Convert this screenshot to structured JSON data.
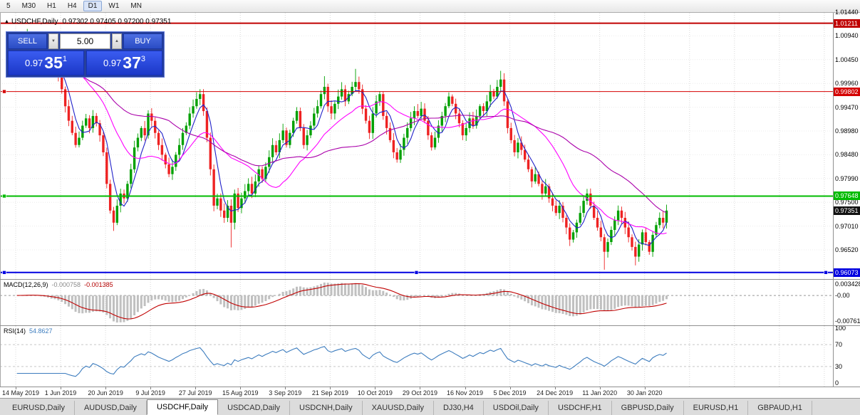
{
  "toolbar": {
    "timeframes": [
      "5",
      "M30",
      "H1",
      "H4",
      "D1",
      "W1",
      "MN"
    ],
    "active": "D1"
  },
  "header": {
    "symbol": "USDCHF,Daily",
    "ohlc": "0.97302 0.97405 0.97200 0.97351"
  },
  "trade_panel": {
    "sell_label": "SELL",
    "buy_label": "BUY",
    "volume": "5.00",
    "sell_price": {
      "big": "0.97",
      "pips": "35",
      "sup": "1"
    },
    "buy_price": {
      "big": "0.97",
      "pips": "37",
      "sup": "3"
    }
  },
  "indicator_panels": {
    "macd": {
      "title": "MACD(12,26,9)",
      "value_main": "-0.000758",
      "value_signal": "-0.001385"
    },
    "rsi": {
      "title": "RSI(14)",
      "value": "54.8627"
    }
  },
  "tabs": {
    "items": [
      "EURUSD,Daily",
      "AUDUSD,Daily",
      "USDCHF,Daily",
      "USDCAD,Daily",
      "USDCNH,Daily",
      "XAUUSD,Daily",
      "DJ30,H4",
      "USDOil,Daily",
      "USDCHF,H1",
      "GBPUSD,Daily",
      "EURUSD,H1",
      "GBPAUD,H1"
    ],
    "active_index": 2
  },
  "chart_data": {
    "type": "candlestick",
    "symbol": "USDCHF",
    "timeframe": "Daily",
    "last_ohlc": {
      "open": 0.97302,
      "high": 0.97405,
      "low": 0.972,
      "close": 0.97351
    },
    "y_axis": {
      "ticks": [
        "1.01440",
        "1.00940",
        "1.00450",
        "0.99960",
        "0.99470",
        "0.98980",
        "0.98480",
        "0.97990",
        "0.97500",
        "0.97010",
        "0.96520"
      ],
      "top_price": 1.0144,
      "tick_step": 0.0049
    },
    "x_axis": {
      "labels": [
        "14 May 2019",
        "1 Jun 2019",
        "20 Jun 2019",
        "9 Jul 2019",
        "27 Jul 2019",
        "15 Aug 2019",
        "3 Sep 2019",
        "21 Sep 2019",
        "10 Oct 2019",
        "29 Oct 2019",
        "16 Nov 2019",
        "5 Dec 2019",
        "24 Dec 2019",
        "11 Jan 2020",
        "30 Jan 2020"
      ],
      "bars_per_label": 13
    },
    "closes": [
      1.008,
      1.009,
      1.0085,
      1.0095,
      1.008,
      1.007,
      1.0075,
      1.0055,
      1.006,
      1.004,
      1.003,
      1.0035,
      1.001,
      0.9985,
      0.995,
      0.992,
      0.9895,
      0.987,
      0.9885,
      0.991,
      0.9925,
      0.9905,
      0.993,
      0.9915,
      0.989,
      0.9855,
      0.979,
      0.9735,
      0.971,
      0.9745,
      0.977,
      0.976,
      0.979,
      0.982,
      0.9865,
      0.9885,
      0.9905,
      0.989,
      0.9935,
      0.992,
      0.9895,
      0.987,
      0.985,
      0.983,
      0.981,
      0.9825,
      0.985,
      0.987,
      0.9895,
      0.991,
      0.9935,
      0.995,
      0.9965,
      0.9975,
      0.994,
      0.9885,
      0.982,
      0.9745,
      0.976,
      0.9735,
      0.972,
      0.9745,
      0.971,
      0.977,
      0.974,
      0.976,
      0.9775,
      0.979,
      0.977,
      0.9795,
      0.982,
      0.98,
      0.9825,
      0.9845,
      0.987,
      0.9855,
      0.988,
      0.99,
      0.987,
      0.9895,
      0.992,
      0.994,
      0.9905,
      0.987,
      0.989,
      0.991,
      0.9935,
      0.995,
      0.9975,
      0.999,
      0.995,
      0.9935,
      0.9955,
      0.997,
      0.9985,
      0.996,
      0.9975,
      0.999,
      1.0,
      0.9985,
      0.9945,
      0.992,
      0.9895,
      0.9935,
      0.996,
      0.9975,
      0.993,
      0.9905,
      0.988,
      0.9855,
      0.984,
      0.986,
      0.9885,
      0.9905,
      0.9925,
      0.994,
      0.993,
      0.9945,
      0.992,
      0.989,
      0.9865,
      0.9885,
      0.991,
      0.993,
      0.995,
      0.997,
      0.9955,
      0.9935,
      0.9915,
      0.989,
      0.9905,
      0.9925,
      0.991,
      0.993,
      0.995,
      0.994,
      0.996,
      0.998,
      0.997,
      0.999,
      1.0005,
      0.996,
      0.9905,
      0.988,
      0.9855,
      0.9875,
      0.986,
      0.984,
      0.982,
      0.9795,
      0.981,
      0.979,
      0.977,
      0.9785,
      0.976,
      0.9745,
      0.973,
      0.9745,
      0.972,
      0.97,
      0.9675,
      0.969,
      0.971,
      0.973,
      0.9755,
      0.977,
      0.9745,
      0.972,
      0.97,
      0.968,
      0.965,
      0.967,
      0.9695,
      0.9715,
      0.9735,
      0.972,
      0.97,
      0.968,
      0.966,
      0.964,
      0.9665,
      0.969,
      0.967,
      0.965,
      0.9685,
      0.9705,
      0.972,
      0.971,
      0.9735
    ],
    "spike_highs": {
      "89": 1.0012,
      "98": 1.0027,
      "140": 1.0023
    },
    "spike_lows": {
      "28": 0.9693,
      "62": 0.9659,
      "170": 0.9613,
      "179": 0.9622
    },
    "horizontal_lines": [
      {
        "price": 1.01211,
        "label": "1.01211",
        "color": "#C00000",
        "width": 2,
        "handles": "none"
      },
      {
        "price": 0.99802,
        "label": "0.99802",
        "color": "#D40000",
        "width": 1,
        "handles": "left"
      },
      {
        "price": 0.97648,
        "label": "0.97648",
        "color": "#00BB00",
        "width": 2,
        "handles": "left"
      },
      {
        "price": 0.96073,
        "label": "0.96073",
        "color": "#0000E0",
        "width": 2,
        "handles": "selected"
      }
    ],
    "current_price": {
      "value": 0.97351,
      "label": "0.97351",
      "tag_color": "#111111"
    },
    "moving_averages": [
      {
        "period": 5,
        "color": "#2020C8"
      },
      {
        "period": 20,
        "color": "#FF00FF"
      },
      {
        "period": 45,
        "color": "#AA00AA"
      }
    ],
    "indicators": [
      {
        "name": "MACD",
        "params": [
          12,
          26,
          9
        ],
        "current": [
          -0.000758,
          -0.001385
        ],
        "scale_labels": [
          "0.003428",
          "-0.00",
          "-0.00761"
        ]
      },
      {
        "name": "RSI",
        "params": [
          14
        ],
        "current": 54.8627,
        "levels": [
          70,
          30
        ],
        "scale_labels": [
          "100",
          "70",
          "30",
          "0"
        ]
      }
    ],
    "candle_colors": {
      "bull": "#00A000",
      "bear": "#EE2222"
    }
  }
}
